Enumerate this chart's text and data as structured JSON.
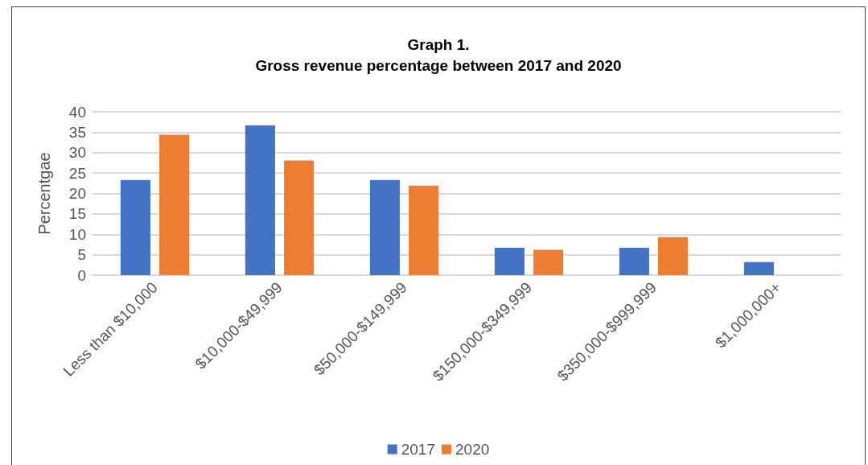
{
  "chart_data": {
    "type": "bar",
    "title": "Graph 1.\nGross revenue percentage between 2017 and 2020",
    "ylabel": "Percentgae",
    "categories": [
      "Less than $10,000",
      "$10,000-$49,999",
      "$50,000-$149,999",
      "$150,000-$349,999",
      "$350,000-$999,999",
      "$1,000,000+"
    ],
    "series": [
      {
        "name": "2017",
        "color": "#4472c4",
        "values": [
          23.3,
          36.7,
          23.3,
          6.7,
          6.7,
          3.2
        ]
      },
      {
        "name": "2020",
        "color": "#ed7d31",
        "values": [
          34.4,
          28.1,
          21.9,
          6.2,
          9.3,
          0
        ]
      }
    ],
    "ylim": [
      0,
      40
    ],
    "yticks": [
      0,
      5,
      10,
      15,
      20,
      25,
      30,
      35,
      40
    ],
    "grid": "y",
    "legend": "bottom"
  }
}
